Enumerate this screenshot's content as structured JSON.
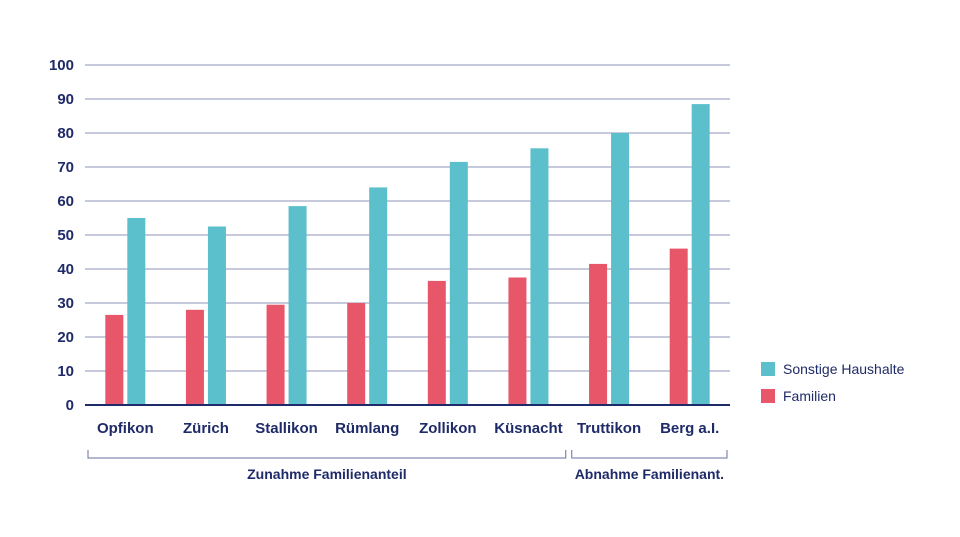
{
  "chart_data": {
    "type": "bar",
    "categories": [
      "Opfikon",
      "Zürich",
      "Stallikon",
      "Rümlang",
      "Zollikon",
      "Küsnacht",
      "Truttikon",
      "Berg a.I."
    ],
    "series": [
      {
        "name": "Familien",
        "color": "#e8566a",
        "values": [
          26.5,
          28,
          29.5,
          30,
          36.5,
          37.5,
          41.5,
          46
        ]
      },
      {
        "name": "Sonstige Haushalte",
        "color": "#5bc0cb",
        "values": [
          55,
          52.5,
          58.5,
          64,
          71.5,
          75.5,
          80,
          88.5
        ]
      }
    ],
    "ylim": [
      0,
      100
    ],
    "yticks": [
      "0",
      "10",
      "20",
      "30",
      "40",
      "50",
      "60",
      "70",
      "80",
      "90",
      "100"
    ],
    "grid": true,
    "legend": {
      "position": "right",
      "order": [
        "Sonstige Haushalte",
        "Familien"
      ]
    },
    "groups": [
      {
        "label": "Zunahme Familienanteil",
        "from": 0,
        "to": 5
      },
      {
        "label": "Abnahme Familienant.",
        "from": 6,
        "to": 7
      }
    ],
    "title": "",
    "xlabel": "",
    "ylabel": ""
  },
  "colors": {
    "text": "#1f2a68",
    "grid": "#6a6fa5",
    "axis": "#1f2a68"
  }
}
